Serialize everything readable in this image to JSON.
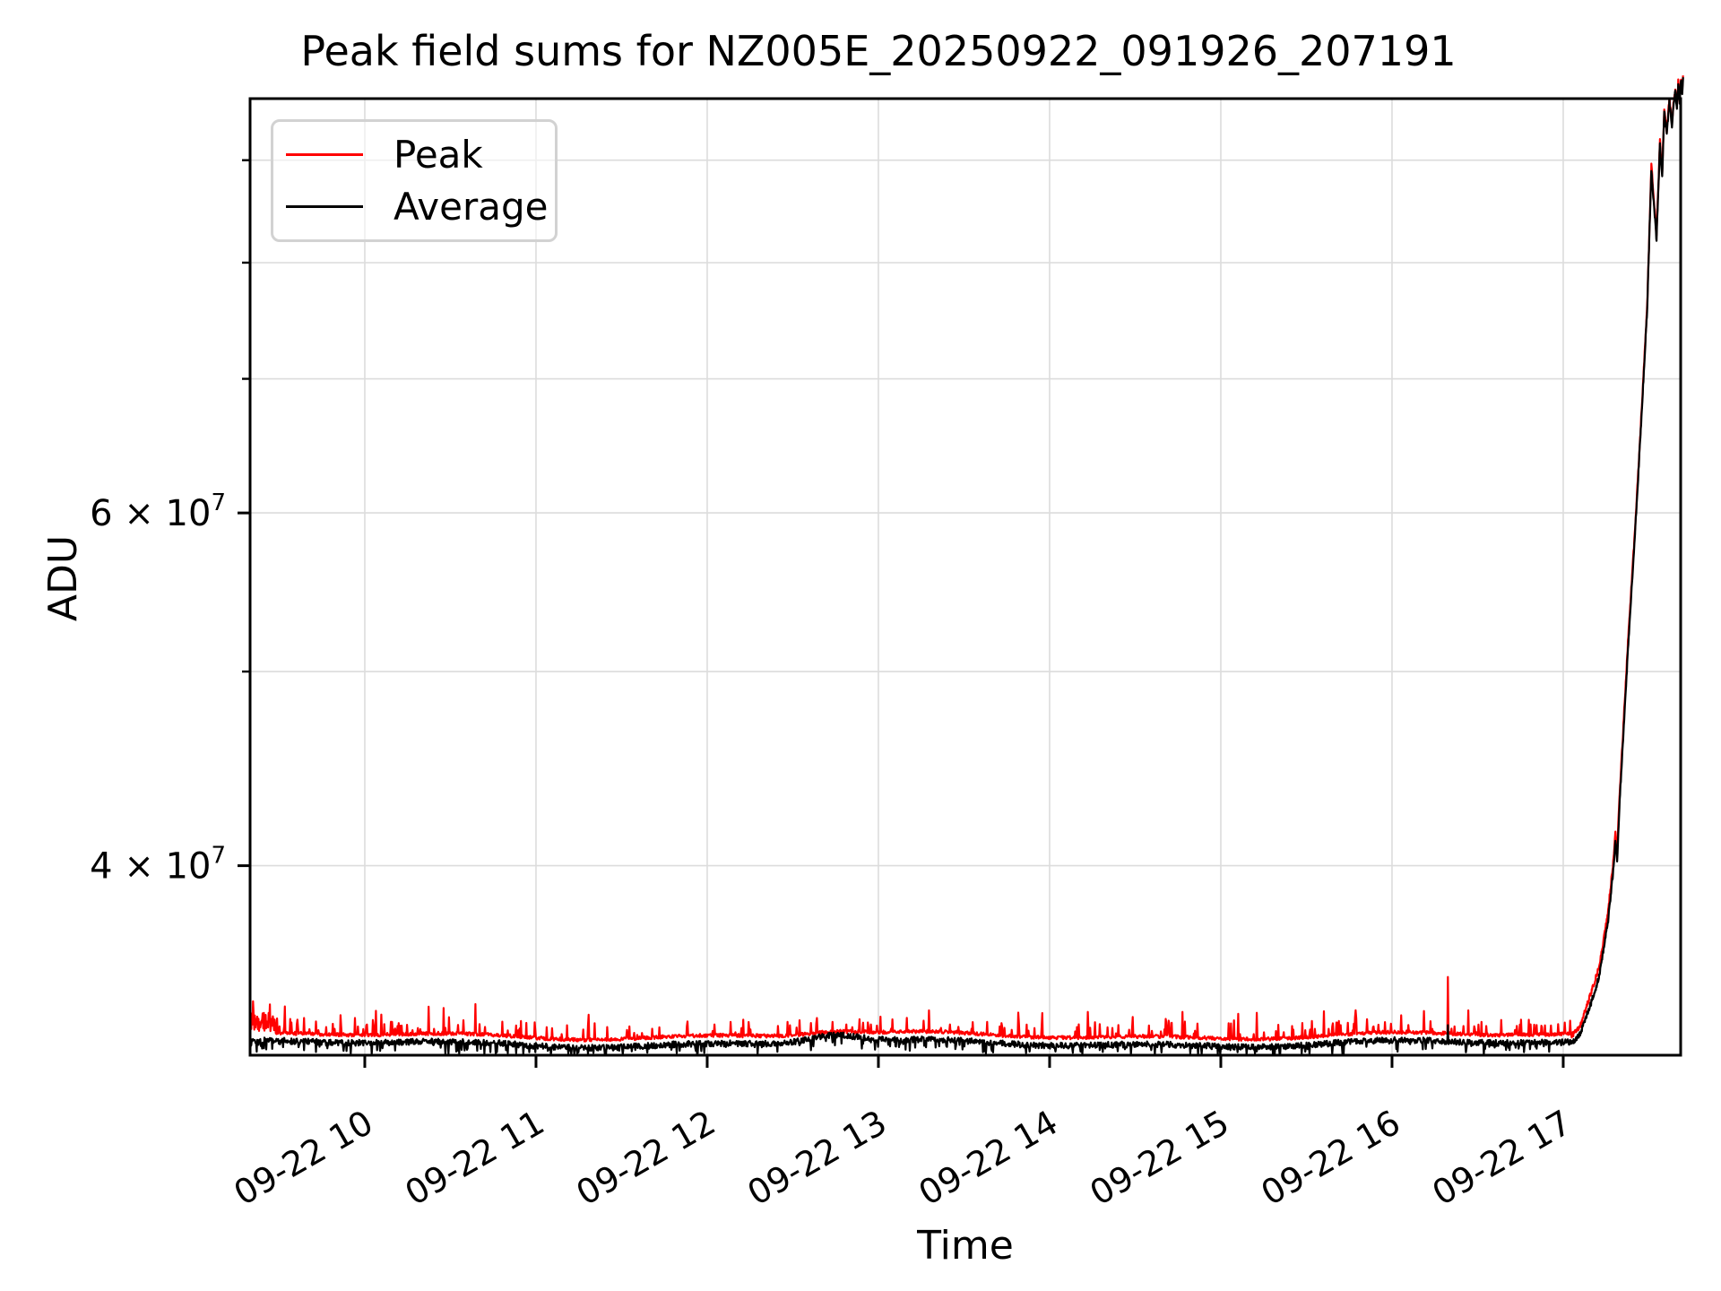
{
  "figure": {
    "title": "Peak field sums for NZ005E_20250922_091926_207191",
    "xlabel": "Time",
    "ylabel": "ADU"
  },
  "legend": {
    "position": "upper left",
    "items": [
      {
        "label": "Peak",
        "color": "#ff0000"
      },
      {
        "label": "Average",
        "color": "#000000"
      }
    ]
  },
  "chart_data": {
    "type": "line",
    "title": "Peak field sums for NZ005E_20250922_091926_207191",
    "xlabel": "Time",
    "ylabel": "ADU",
    "yscale": "log",
    "grid": true,
    "grid_color": "#dcdcdc",
    "ylim": [
      32170000,
      96600000
    ],
    "xlim_hours": [
      9.33,
      17.686
    ],
    "x_ticks": [
      {
        "hour": 10,
        "label": "09-22 10"
      },
      {
        "hour": 11,
        "label": "09-22 11"
      },
      {
        "hour": 12,
        "label": "09-22 12"
      },
      {
        "hour": 13,
        "label": "09-22 13"
      },
      {
        "hour": 14,
        "label": "09-22 14"
      },
      {
        "hour": 15,
        "label": "09-22 15"
      },
      {
        "hour": 16,
        "label": "09-22 16"
      },
      {
        "hour": 17,
        "label": "09-22 17"
      }
    ],
    "y_major_ticks": [
      {
        "value": 40000000,
        "base": "4 × 10",
        "sup": "7"
      },
      {
        "value": 60000000,
        "base": "6 × 10",
        "sup": "7"
      }
    ],
    "y_minor_ticks": [
      30000000,
      50000000,
      70000000,
      80000000,
      90000000
    ],
    "series": [
      {
        "name": "Peak",
        "color": "#ff0000",
        "baseline": 32900000,
        "noise": {
          "jitter": 0.002,
          "spike_prob": 0.1,
          "spike_max": 0.018,
          "rare_spike_prob": 0.012,
          "rare_spike_max": 0.035,
          "direction": 1,
          "start_boost": true
        },
        "hump": {
          "hour": 12.73,
          "amplitude": 0.004
        },
        "special_spike": {
          "hour": 16.325,
          "value": 35200000
        },
        "rise_profile": [
          [
            17.05,
            32900000
          ],
          [
            17.1,
            33300000
          ],
          [
            17.16,
            34500000
          ],
          [
            17.21,
            35600000
          ],
          [
            17.26,
            37800000
          ],
          [
            17.29,
            40000000
          ],
          [
            17.305,
            41500000
          ],
          [
            17.315,
            40700000
          ],
          [
            17.33,
            43500000
          ],
          [
            17.38,
            52000000
          ],
          [
            17.42,
            59000000
          ],
          [
            17.46,
            68000000
          ],
          [
            17.49,
            76000000
          ],
          [
            17.515,
            89500000
          ],
          [
            17.545,
            82500000
          ],
          [
            17.565,
            92000000
          ],
          [
            17.578,
            88500000
          ],
          [
            17.59,
            95500000
          ],
          [
            17.605,
            93000000
          ],
          [
            17.62,
            96600000
          ],
          [
            17.635,
            94000000
          ],
          [
            17.648,
            96800000
          ],
          [
            17.655,
            97500000
          ],
          [
            17.664,
            95800000
          ],
          [
            17.672,
            98500000
          ],
          [
            17.68,
            96500000
          ],
          [
            17.688,
            99000000
          ],
          [
            17.695,
            97200000
          ],
          [
            17.7,
            99200000
          ]
        ]
      },
      {
        "name": "Average",
        "color": "#000000",
        "baseline": 32600000,
        "noise": {
          "jitter": 0.0035,
          "spike_prob": 0.08,
          "spike_max": 0.011,
          "rare_spike_prob": 0.02,
          "rare_spike_max": 0.016,
          "direction": -1,
          "start_boost": false
        },
        "hump": {
          "hour": 12.73,
          "amplitude": 0.009
        },
        "special_spike": {
          "hour": 16.325,
          "value": 33300000
        },
        "rise_profile": [
          [
            17.05,
            32600000
          ],
          [
            17.1,
            33000000
          ],
          [
            17.16,
            34100000
          ],
          [
            17.21,
            35200000
          ],
          [
            17.26,
            37400000
          ],
          [
            17.29,
            39600000
          ],
          [
            17.305,
            41100000
          ],
          [
            17.315,
            40300000
          ],
          [
            17.33,
            43100000
          ],
          [
            17.38,
            51600000
          ],
          [
            17.42,
            58700000
          ],
          [
            17.46,
            67700000
          ],
          [
            17.49,
            75700000
          ],
          [
            17.515,
            89100000
          ],
          [
            17.545,
            82100000
          ],
          [
            17.565,
            91700000
          ],
          [
            17.578,
            88200000
          ],
          [
            17.59,
            95200000
          ],
          [
            17.605,
            92700000
          ],
          [
            17.62,
            96400000
          ],
          [
            17.635,
            93700000
          ],
          [
            17.648,
            96600000
          ],
          [
            17.655,
            97300000
          ],
          [
            17.664,
            95600000
          ],
          [
            17.672,
            98300000
          ],
          [
            17.68,
            96300000
          ],
          [
            17.688,
            98800000
          ],
          [
            17.695,
            97000000
          ],
          [
            17.7,
            99000000
          ]
        ]
      }
    ]
  }
}
